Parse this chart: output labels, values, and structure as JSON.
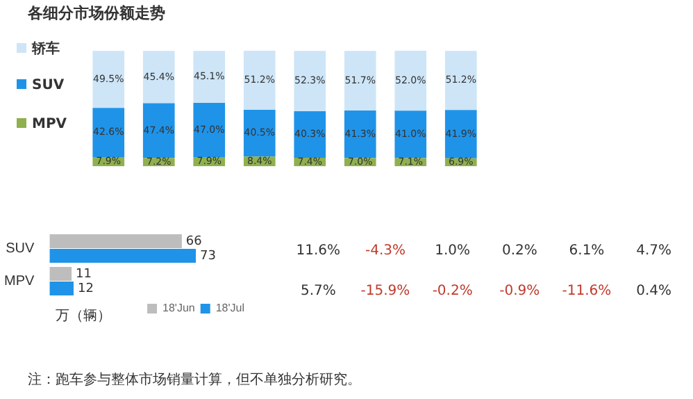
{
  "chart_data": [
    {
      "type": "bar",
      "title": "各细分市场份额走势",
      "stacked": true,
      "legend": "left",
      "categories": [
        null,
        null,
        null,
        null,
        null,
        null,
        null,
        null
      ],
      "series": [
        {
          "name": "MPV",
          "color": "#8fb04e",
          "values": [
            7.9,
            7.2,
            7.9,
            8.4,
            7.4,
            7.0,
            7.1,
            6.9
          ],
          "value_labels": [
            "7.9%",
            "7.2%",
            "7.9%",
            "8.4%",
            "7.4%",
            "7.0%",
            "7.1%",
            "6.9%"
          ]
        },
        {
          "name": "SUV",
          "color": "#1f93e8",
          "values": [
            42.6,
            47.4,
            47.0,
            40.5,
            40.3,
            41.3,
            41.0,
            41.9
          ],
          "value_labels": [
            "42.6%",
            "47.4%",
            "47.0%",
            "40.5%",
            "40.3%",
            "41.3%",
            "41.0%",
            "41.9%"
          ]
        },
        {
          "name": "轿车",
          "color": "#cde5f7",
          "values": [
            49.5,
            45.4,
            45.1,
            51.2,
            52.3,
            51.7,
            52.0,
            51.2
          ],
          "value_labels": [
            "49.5%",
            "45.4%",
            "45.1%",
            "51.2%",
            "52.3%",
            "51.7%",
            "52.0%",
            "51.2%"
          ]
        }
      ]
    },
    {
      "type": "bar",
      "orientation": "horizontal",
      "data_labels": true,
      "legend": "bottom right",
      "categories": [
        "SUV",
        "MPV"
      ],
      "series": [
        {
          "name": "18'Jun",
          "color": "#bdbdbd",
          "values": [
            66,
            11
          ]
        },
        {
          "name": "18'Jul",
          "color": "#1f93e8",
          "values": [
            73,
            12
          ]
        }
      ],
      "annotations": [
        "万（辆）",
        "注：跑车参与整体市场销量计算，但不单独分析研究。"
      ]
    },
    {
      "type": "other",
      "annotations": [
        "11.6%",
        "-4.3%",
        "1.0%",
        "0.2%",
        "6.1%",
        "4.7%",
        "5.7%",
        "-15.9%",
        "-0.2%",
        "-0.9%",
        "-11.6%",
        "0.4%"
      ]
    }
  ]
}
